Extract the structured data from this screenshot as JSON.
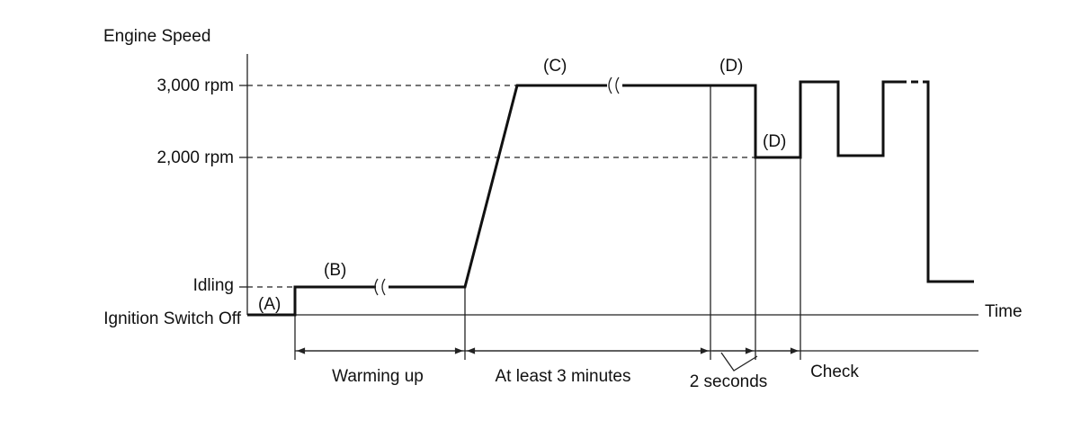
{
  "axis": {
    "y_title": "Engine Speed",
    "x_title": "Time",
    "levels": [
      "3,000 rpm",
      "2,000 rpm",
      "Idling",
      "Ignition Switch Off"
    ]
  },
  "markers": [
    "(A)",
    "(B)",
    "(C)",
    "(D)",
    "(D)"
  ],
  "phases": [
    "Warming up",
    "At least 3 minutes",
    "2 seconds",
    "Check"
  ]
}
